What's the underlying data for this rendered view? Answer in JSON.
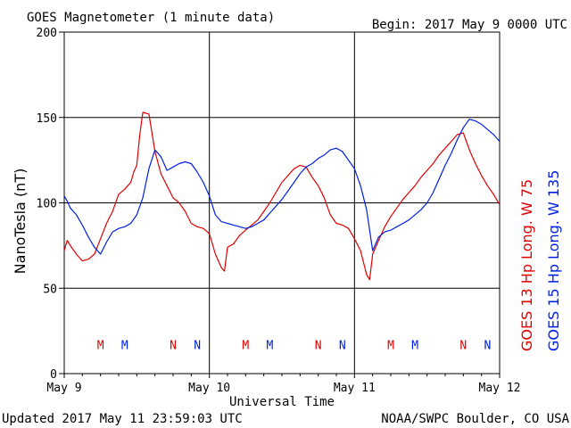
{
  "header": {
    "title": "GOES Magnetometer (1 minute data)",
    "begin": "Begin:  2017 May 9 0000 UTC"
  },
  "footer": {
    "updated": "Updated 2017 May 11 23:59:03 UTC",
    "source": "NOAA/SWPC Boulder, CO USA"
  },
  "chart_data": {
    "type": "line",
    "ylabel": "NanoTesla (nT)",
    "xlabel": "Universal Time",
    "xlim": [
      0,
      72
    ],
    "ylim": [
      0,
      200
    ],
    "x_ticks": [
      {
        "x": 0,
        "label": "May 9"
      },
      {
        "x": 24,
        "label": "May 10"
      },
      {
        "x": 48,
        "label": "May 11"
      },
      {
        "x": 72,
        "label": "May 12"
      }
    ],
    "y_ticks": [
      0,
      50,
      100,
      150,
      200
    ],
    "grid": true,
    "legend_position": "right-vertical",
    "series": [
      {
        "name": "GOES 13 Hp  Long. W 75",
        "color": "#e00000",
        "x": [
          0,
          0.5,
          1,
          2,
          3,
          4,
          5,
          6,
          7,
          8,
          9,
          10,
          11,
          11.5,
          12,
          12.5,
          13,
          14,
          15,
          16,
          17,
          18,
          19,
          20,
          21,
          22,
          23,
          24,
          25,
          26,
          26.5,
          27,
          28,
          29,
          30,
          31,
          32,
          33,
          34,
          35,
          36,
          37,
          38,
          39,
          40,
          41,
          42,
          43,
          44,
          45,
          46,
          47,
          48,
          49,
          50,
          50.5,
          51,
          52,
          53,
          54,
          55,
          56,
          57,
          58,
          59,
          60,
          61,
          62,
          63,
          64,
          65,
          66,
          67,
          68,
          69,
          70,
          71,
          72
        ],
        "values": [
          72,
          78,
          75,
          70,
          66,
          67,
          70,
          79,
          88,
          95,
          105,
          108,
          112,
          118,
          122,
          140,
          153,
          152,
          130,
          117,
          110,
          103,
          100,
          95,
          88,
          86,
          85,
          82,
          70,
          62,
          60,
          74,
          76,
          81,
          84,
          87,
          90,
          95,
          100,
          106,
          112,
          116,
          120,
          122,
          121,
          115,
          110,
          103,
          93,
          88,
          87,
          85,
          79,
          72,
          58,
          55,
          70,
          78,
          86,
          92,
          97,
          102,
          106,
          110,
          115,
          119,
          123,
          128,
          132,
          136,
          140,
          141,
          131,
          123,
          116,
          110,
          105,
          99
        ]
      },
      {
        "name": "GOES 15 Hp  Long. W 135",
        "color": "#0020e0",
        "x": [
          0,
          0.5,
          1,
          2,
          3,
          4,
          5,
          6,
          7,
          8,
          9,
          10,
          11,
          12,
          13,
          14,
          15,
          16,
          17,
          18,
          19,
          20,
          21,
          22,
          23,
          24,
          25,
          26,
          27,
          28,
          29,
          30,
          31,
          32,
          33,
          34,
          35,
          36,
          37,
          38,
          39,
          40,
          41,
          42,
          43,
          44,
          45,
          46,
          47,
          48,
          49,
          50,
          51,
          52,
          53,
          54,
          55,
          56,
          57,
          58,
          59,
          60,
          61,
          62,
          63,
          64,
          65,
          66,
          67,
          68,
          69,
          70,
          71,
          72
        ],
        "values": [
          104,
          101,
          97,
          93,
          87,
          80,
          74,
          70,
          77,
          83,
          85,
          86,
          88,
          93,
          103,
          120,
          131,
          127,
          119,
          121,
          123,
          124,
          123,
          118,
          112,
          104,
          93,
          89,
          88,
          87,
          86,
          85,
          86,
          88,
          90,
          94,
          98,
          102,
          107,
          112,
          117,
          121,
          123,
          126,
          128,
          131,
          132,
          130,
          125,
          120,
          110,
          96,
          72,
          80,
          83,
          84,
          86,
          88,
          90,
          93,
          96,
          100,
          106,
          114,
          122,
          129,
          137,
          144,
          149,
          148,
          146,
          143,
          140,
          136
        ]
      }
    ],
    "markers": [
      {
        "x": 6,
        "label": "M",
        "color": "#e00000"
      },
      {
        "x": 10,
        "label": "M",
        "color": "#0020e0"
      },
      {
        "x": 18,
        "label": "N",
        "color": "#e00000"
      },
      {
        "x": 22,
        "label": "N",
        "color": "#0020e0"
      },
      {
        "x": 30,
        "label": "M",
        "color": "#e00000"
      },
      {
        "x": 34,
        "label": "M",
        "color": "#0020e0"
      },
      {
        "x": 42,
        "label": "N",
        "color": "#e00000"
      },
      {
        "x": 46,
        "label": "N",
        "color": "#0020e0"
      },
      {
        "x": 54,
        "label": "M",
        "color": "#e00000"
      },
      {
        "x": 58,
        "label": "M",
        "color": "#0020e0"
      },
      {
        "x": 66,
        "label": "N",
        "color": "#e00000"
      },
      {
        "x": 70,
        "label": "N",
        "color": "#0020e0"
      }
    ],
    "marker_level": 17
  }
}
